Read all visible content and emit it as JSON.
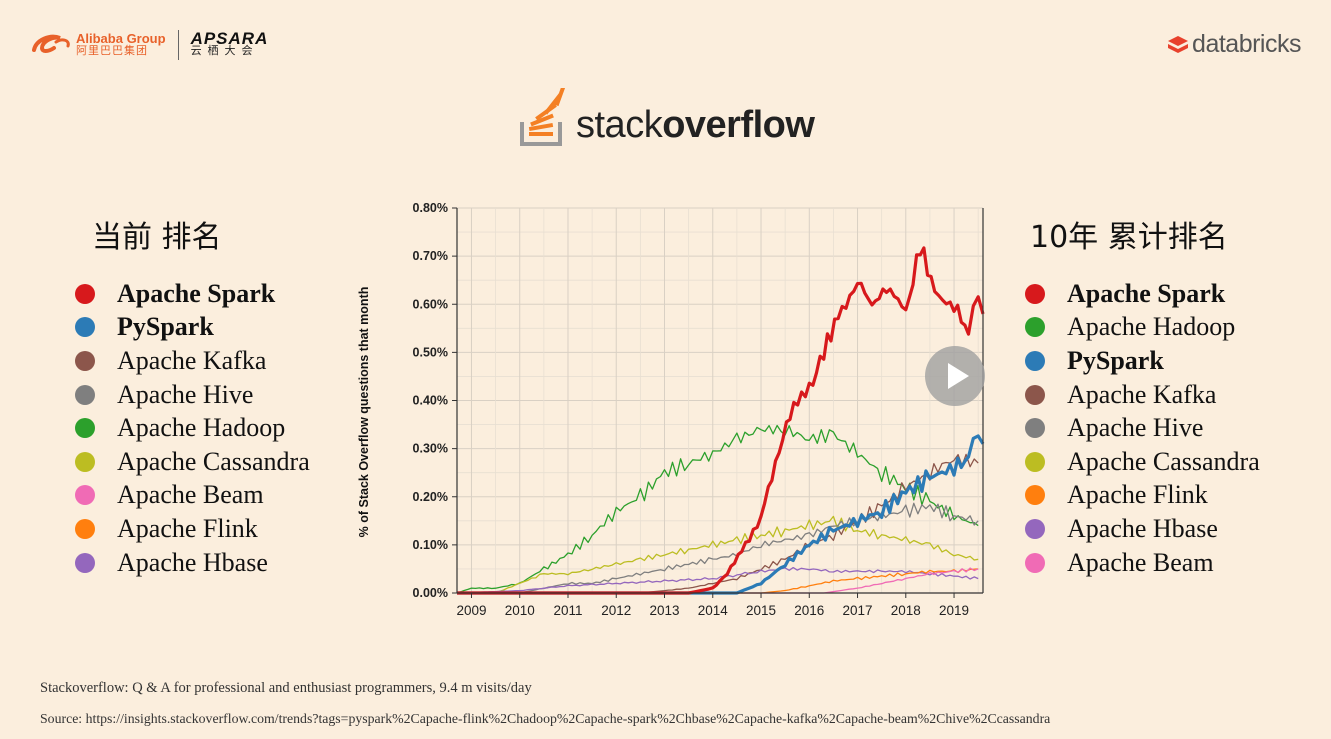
{
  "header": {
    "alibaba_en": "Alibaba Group",
    "alibaba_cn": "阿里巴巴集团",
    "apsara_en": "APSARA",
    "apsara_cn": "云栖大会",
    "databricks": "databricks",
    "stackoverflow_light": "stack",
    "stackoverflow_bold": "overflow"
  },
  "left_panel": {
    "title": "当前 排名",
    "items": [
      {
        "label": "Apache Spark",
        "color": "#d7191c",
        "bold": true
      },
      {
        "label": "PySpark",
        "color": "#2c7bb6",
        "bold": true
      },
      {
        "label": "Apache Kafka",
        "color": "#8c564b",
        "bold": false
      },
      {
        "label": "Apache Hive",
        "color": "#7f7f7f",
        "bold": false
      },
      {
        "label": "Apache Hadoop",
        "color": "#2ca02c",
        "bold": false
      },
      {
        "label": "Apache Cassandra",
        "color": "#bcbd22",
        "bold": false
      },
      {
        "label": "Apache Beam",
        "color": "#f06bb5",
        "bold": false
      },
      {
        "label": "Apache Flink",
        "color": "#ff7f0e",
        "bold": false
      },
      {
        "label": "Apache Hbase",
        "color": "#9467bd",
        "bold": false
      }
    ]
  },
  "right_panel": {
    "title": "10年 累计排名",
    "items": [
      {
        "label": "Apache Spark",
        "color": "#d7191c",
        "bold": true
      },
      {
        "label": "Apache Hadoop",
        "color": "#2ca02c",
        "bold": false
      },
      {
        "label": "PySpark",
        "color": "#2c7bb6",
        "bold": true
      },
      {
        "label": "Apache Kafka",
        "color": "#8c564b",
        "bold": false
      },
      {
        "label": "Apache Hive",
        "color": "#7f7f7f",
        "bold": false
      },
      {
        "label": "Apache Cassandra",
        "color": "#bcbd22",
        "bold": false
      },
      {
        "label": "Apache Flink",
        "color": "#ff7f0e",
        "bold": false
      },
      {
        "label": "Apache Hbase",
        "color": "#9467bd",
        "bold": false
      },
      {
        "label": "Apache Beam",
        "color": "#f06bb5",
        "bold": false
      }
    ]
  },
  "footer": {
    "line1": "Stackoverflow: Q & A for professional and enthusiast programmers, 9.4 m  visits/day",
    "line2": "Source: https://insights.stackoverflow.com/trends?tags=pyspark%2Capache-flink%2Chadoop%2Capache-spark%2Chbase%2Capache-kafka%2Capache-beam%2Chive%2Ccassandra"
  },
  "chart_data": {
    "type": "line",
    "ylabel": "% of Stack Overflow questions that month",
    "xlim": [
      2008.7,
      2019.6
    ],
    "ylim": [
      0,
      0.8
    ],
    "y_ticks": [
      "0.00%",
      "0.10%",
      "0.20%",
      "0.30%",
      "0.40%",
      "0.50%",
      "0.60%",
      "0.70%",
      "0.80%"
    ],
    "x_ticks": [
      "2009",
      "2010",
      "2011",
      "2012",
      "2013",
      "2014",
      "2015",
      "2016",
      "2017",
      "2018",
      "2019"
    ],
    "grid": true,
    "series": [
      {
        "color": "#2ca02c",
        "width": 1.3,
        "x": [
          2008.7,
          2009.0,
          2009.5,
          2010.0,
          2010.5,
          2011.0,
          2011.5,
          2012.0,
          2012.5,
          2013.0,
          2013.5,
          2014.0,
          2014.5,
          2015.0,
          2015.5,
          2016.0,
          2016.5,
          2017.0,
          2017.5,
          2018.0,
          2018.5,
          2019.0,
          2019.5
        ],
        "y": [
          0.0,
          0.01,
          0.01,
          0.02,
          0.05,
          0.08,
          0.12,
          0.17,
          0.2,
          0.25,
          0.27,
          0.29,
          0.32,
          0.34,
          0.34,
          0.32,
          0.33,
          0.29,
          0.25,
          0.22,
          0.19,
          0.16,
          0.14
        ]
      },
      {
        "color": "#bcbd22",
        "width": 1.3,
        "x": [
          2008.7,
          2009.5,
          2010.0,
          2010.5,
          2011.0,
          2011.5,
          2012.0,
          2012.5,
          2013.0,
          2013.5,
          2014.0,
          2014.5,
          2015.0,
          2015.5,
          2016.0,
          2016.5,
          2017.0,
          2017.5,
          2018.0,
          2018.5,
          2019.0,
          2019.5
        ],
        "y": [
          0.0,
          0.0,
          0.02,
          0.04,
          0.04,
          0.05,
          0.06,
          0.07,
          0.08,
          0.09,
          0.1,
          0.11,
          0.12,
          0.13,
          0.14,
          0.15,
          0.13,
          0.12,
          0.11,
          0.1,
          0.08,
          0.07
        ]
      },
      {
        "color": "#7f7f7f",
        "width": 1.3,
        "x": [
          2008.7,
          2010.0,
          2010.5,
          2011.0,
          2011.5,
          2012.0,
          2012.5,
          2013.0,
          2013.5,
          2014.0,
          2014.5,
          2015.0,
          2015.5,
          2016.0,
          2016.5,
          2017.0,
          2017.5,
          2018.0,
          2018.5,
          2019.0,
          2019.5
        ],
        "y": [
          0.0,
          0.0,
          0.01,
          0.02,
          0.02,
          0.03,
          0.04,
          0.05,
          0.06,
          0.07,
          0.08,
          0.1,
          0.11,
          0.12,
          0.14,
          0.15,
          0.16,
          0.17,
          0.18,
          0.16,
          0.15
        ]
      },
      {
        "color": "#8c564b",
        "width": 1.3,
        "x": [
          2008.7,
          2012.5,
          2013.0,
          2013.5,
          2014.0,
          2014.5,
          2015.0,
          2015.5,
          2016.0,
          2016.5,
          2017.0,
          2017.5,
          2018.0,
          2018.5,
          2019.0,
          2019.5
        ],
        "y": [
          0.0,
          0.0,
          0.005,
          0.01,
          0.02,
          0.03,
          0.05,
          0.07,
          0.1,
          0.12,
          0.15,
          0.18,
          0.22,
          0.25,
          0.28,
          0.27
        ]
      },
      {
        "color": "#9467bd",
        "width": 1.3,
        "x": [
          2008.7,
          2010.0,
          2011.0,
          2012.0,
          2013.0,
          2014.0,
          2015.0,
          2015.5,
          2016.0,
          2016.5,
          2017.0,
          2017.5,
          2018.0,
          2018.5,
          2019.0,
          2019.5
        ],
        "y": [
          0.0,
          0.005,
          0.015,
          0.02,
          0.025,
          0.03,
          0.045,
          0.05,
          0.05,
          0.045,
          0.045,
          0.045,
          0.045,
          0.04,
          0.035,
          0.03
        ]
      },
      {
        "color": "#ff7f0e",
        "width": 1.3,
        "x": [
          2008.7,
          2015.0,
          2015.5,
          2016.0,
          2016.5,
          2017.0,
          2017.5,
          2018.0,
          2018.5,
          2019.0,
          2019.5
        ],
        "y": [
          0.0,
          0.0,
          0.005,
          0.015,
          0.025,
          0.03,
          0.035,
          0.04,
          0.045,
          0.045,
          0.05
        ]
      },
      {
        "color": "#f06bb5",
        "width": 1.3,
        "x": [
          2008.7,
          2016.3,
          2017.0,
          2017.5,
          2018.0,
          2018.5,
          2019.0,
          2019.5
        ],
        "y": [
          0.0,
          0.0,
          0.01,
          0.02,
          0.03,
          0.04,
          0.045,
          0.05
        ]
      },
      {
        "color": "#2c7bb6",
        "width": 3.2,
        "x": [
          2008.7,
          2014.5,
          2015.0,
          2015.5,
          2016.0,
          2016.5,
          2017.0,
          2017.5,
          2018.0,
          2018.5,
          2019.0,
          2019.3,
          2019.5,
          2019.6
        ],
        "y": [
          0.0,
          0.0,
          0.02,
          0.06,
          0.1,
          0.13,
          0.15,
          0.17,
          0.21,
          0.24,
          0.26,
          0.28,
          0.34,
          0.31
        ]
      },
      {
        "color": "#d7191c",
        "width": 3.2,
        "x": [
          2008.7,
          2013.5,
          2014.0,
          2014.3,
          2014.6,
          2015.0,
          2015.3,
          2015.6,
          2016.0,
          2016.3,
          2016.6,
          2017.0,
          2017.3,
          2017.6,
          2018.0,
          2018.3,
          2018.6,
          2019.0,
          2019.3,
          2019.5,
          2019.6
        ],
        "y": [
          0.0,
          0.0,
          0.01,
          0.04,
          0.09,
          0.16,
          0.27,
          0.37,
          0.42,
          0.5,
          0.58,
          0.65,
          0.6,
          0.63,
          0.58,
          0.72,
          0.63,
          0.6,
          0.54,
          0.62,
          0.58
        ]
      }
    ]
  }
}
